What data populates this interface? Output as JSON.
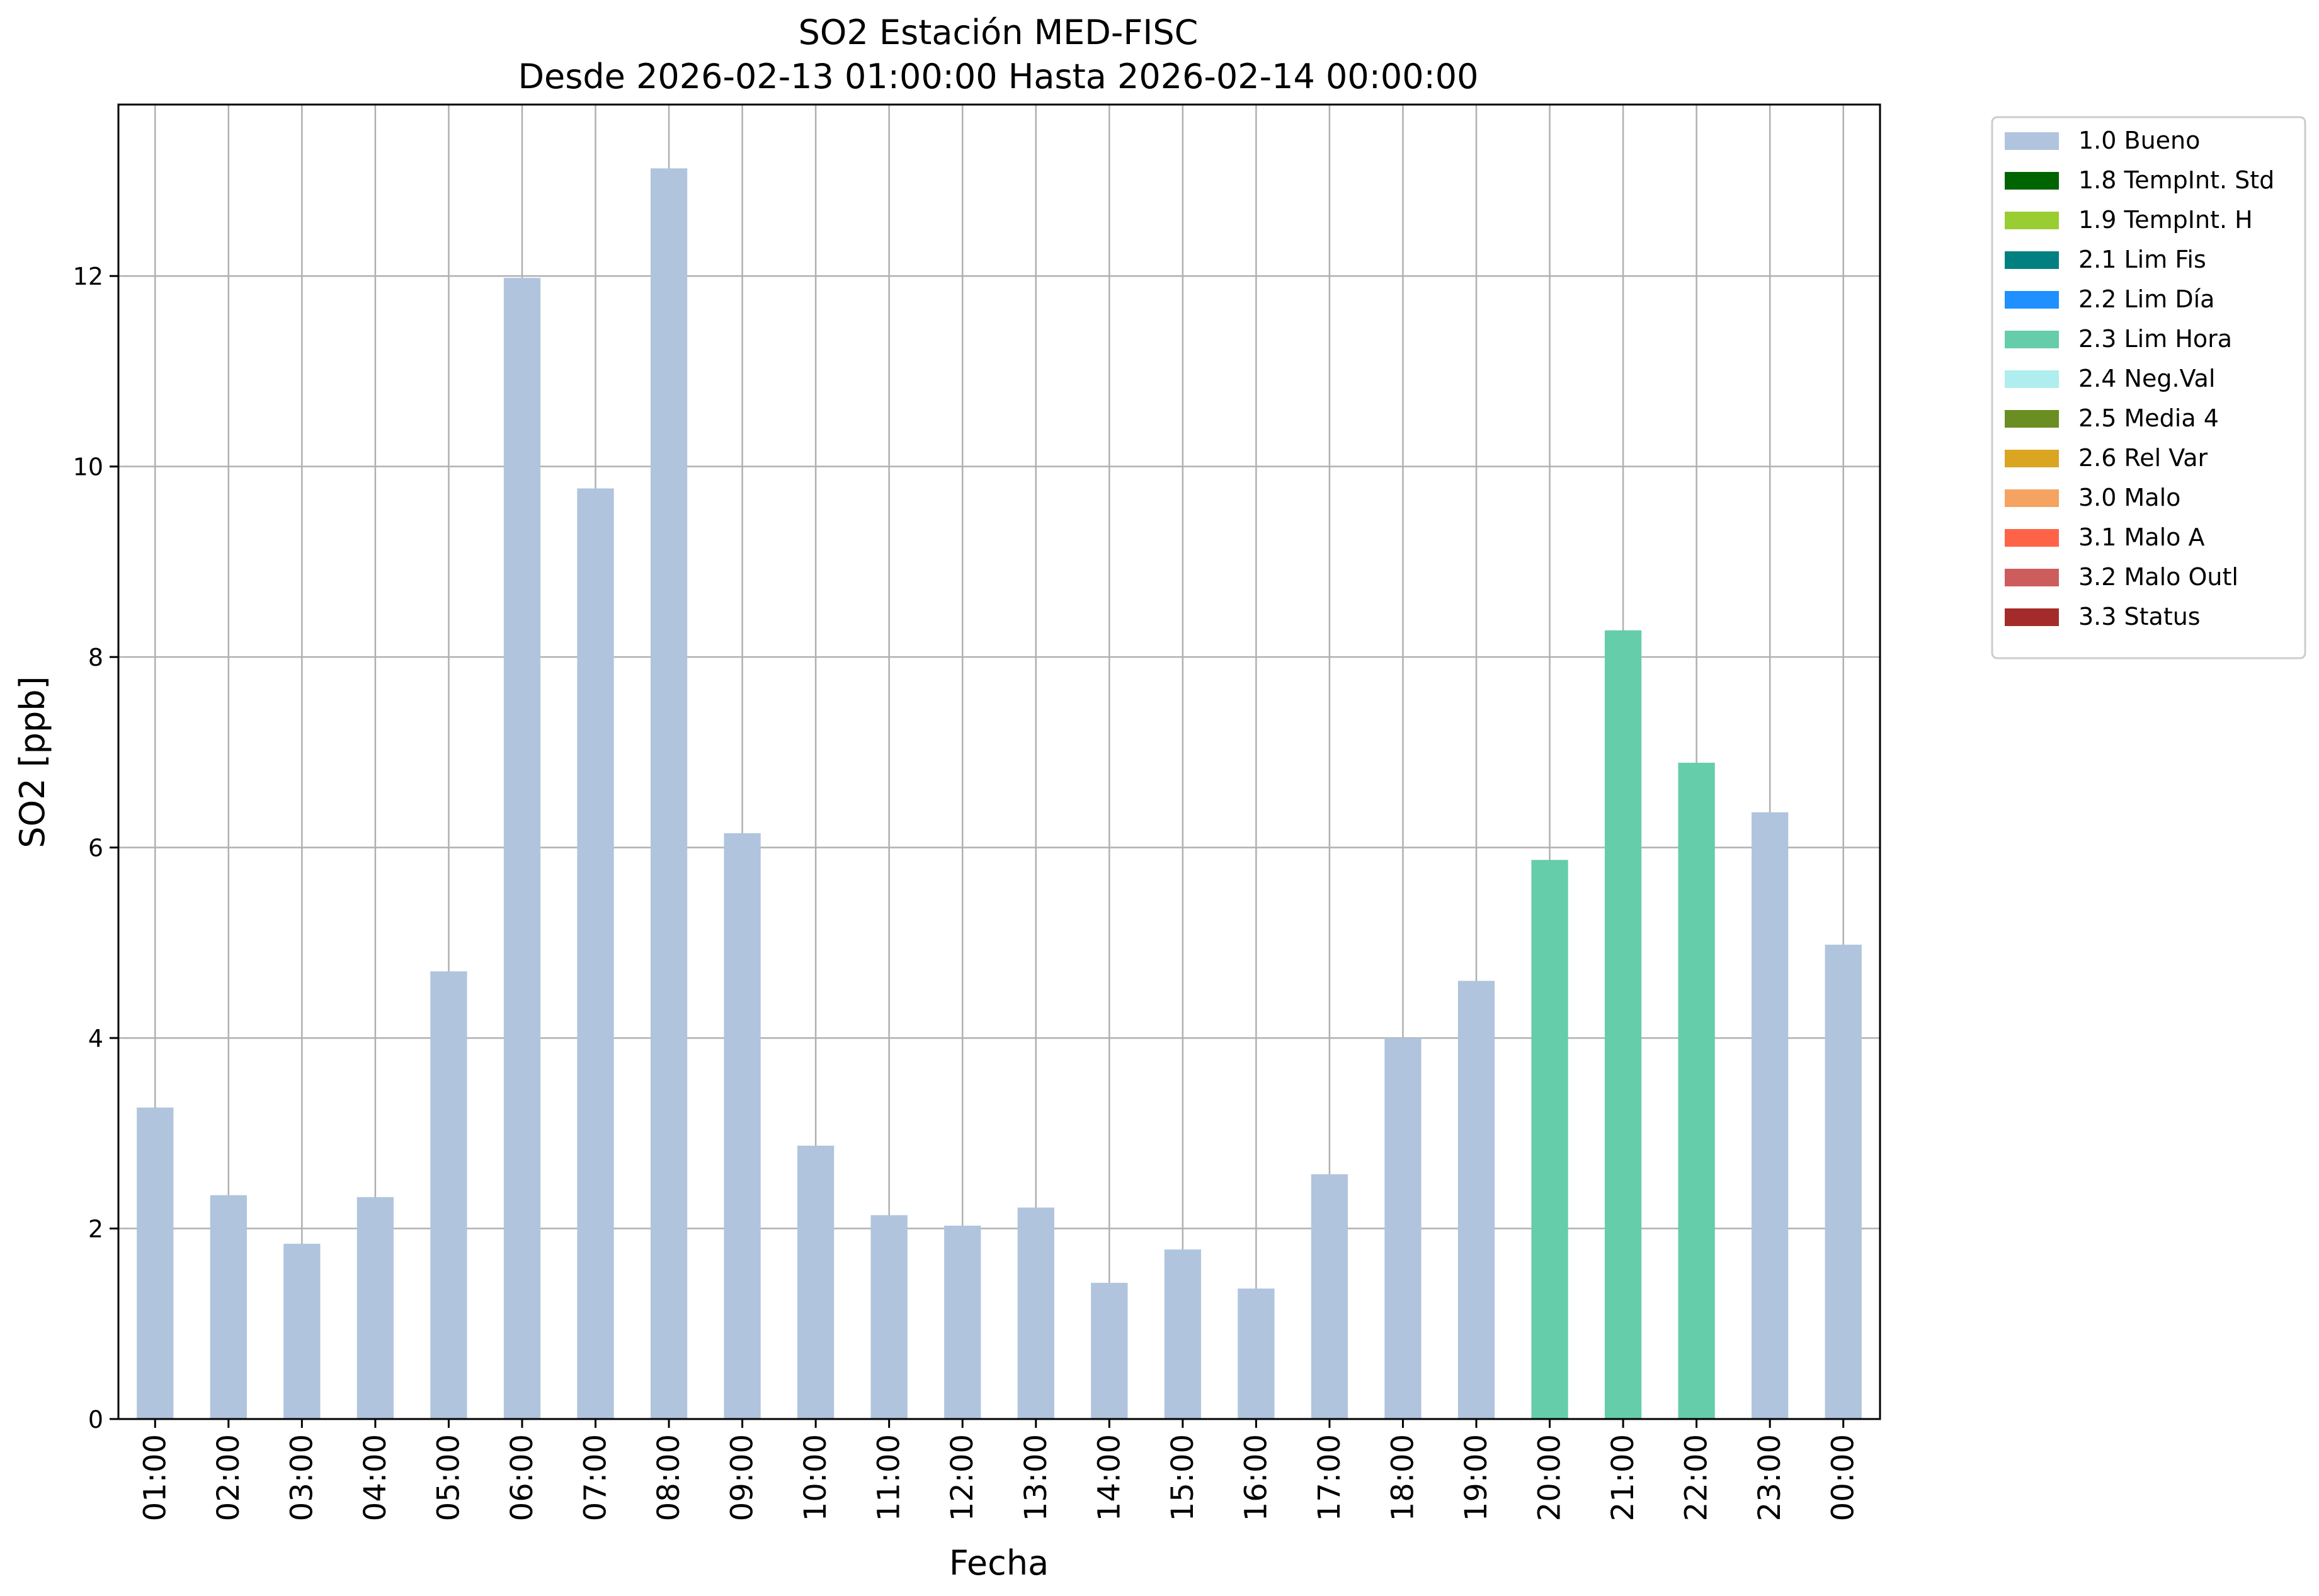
{
  "chart_data": {
    "type": "bar",
    "title": "SO2 Estación MED-FISC",
    "subtitle": "Desde 2026-02-13 01:00:00 Hasta 2026-02-14 00:00:00",
    "xlabel": "Fecha",
    "ylabel": "SO2 [ppb]",
    "ylim": [
      0,
      13.8
    ],
    "yticks": [
      0,
      2,
      4,
      6,
      8,
      10,
      12
    ],
    "grid": true,
    "legend_position": "outside-top-right",
    "categories": [
      "01:00",
      "02:00",
      "03:00",
      "04:00",
      "05:00",
      "06:00",
      "07:00",
      "08:00",
      "09:00",
      "10:00",
      "11:00",
      "12:00",
      "13:00",
      "14:00",
      "15:00",
      "16:00",
      "17:00",
      "18:00",
      "19:00",
      "20:00",
      "21:00",
      "22:00",
      "23:00",
      "00:00"
    ],
    "values": [
      3.27,
      2.35,
      1.84,
      2.33,
      4.7,
      11.98,
      9.77,
      13.13,
      6.15,
      2.87,
      2.14,
      2.03,
      2.22,
      1.43,
      1.78,
      1.37,
      2.57,
      4.0,
      4.6,
      5.87,
      8.28,
      6.89,
      6.37,
      4.98
    ],
    "flags": [
      "1.0 Bueno",
      "1.0 Bueno",
      "1.0 Bueno",
      "1.0 Bueno",
      "1.0 Bueno",
      "1.0 Bueno",
      "1.0 Bueno",
      "1.0 Bueno",
      "1.0 Bueno",
      "1.0 Bueno",
      "1.0 Bueno",
      "1.0 Bueno",
      "1.0 Bueno",
      "1.0 Bueno",
      "1.0 Bueno",
      "1.0 Bueno",
      "1.0 Bueno",
      "1.0 Bueno",
      "1.0 Bueno",
      "2.3 Lim Hora",
      "2.3 Lim Hora",
      "2.3 Lim Hora",
      "1.0 Bueno",
      "1.0 Bueno"
    ],
    "legend": [
      {
        "name": "1.0 Bueno",
        "color": "#b0c4de"
      },
      {
        "name": "1.8 TempInt. Std",
        "color": "#006400"
      },
      {
        "name": "1.9 TempInt. H",
        "color": "#9acd32"
      },
      {
        "name": "2.1 Lim Fis",
        "color": "#008080"
      },
      {
        "name": "2.2 Lim Día",
        "color": "#1e90ff"
      },
      {
        "name": "2.3 Lim Hora",
        "color": "#66cdaa"
      },
      {
        "name": "2.4 Neg.Val",
        "color": "#afeeee"
      },
      {
        "name": "2.5 Media 4",
        "color": "#6b8e23"
      },
      {
        "name": "2.6 Rel Var",
        "color": "#daa520"
      },
      {
        "name": "3.0 Malo",
        "color": "#f4a460"
      },
      {
        "name": "3.1 Malo A",
        "color": "#ff6347"
      },
      {
        "name": "3.2 Malo Outl",
        "color": "#cd5c5c"
      },
      {
        "name": "3.3 Status",
        "color": "#a52a2a"
      }
    ]
  }
}
